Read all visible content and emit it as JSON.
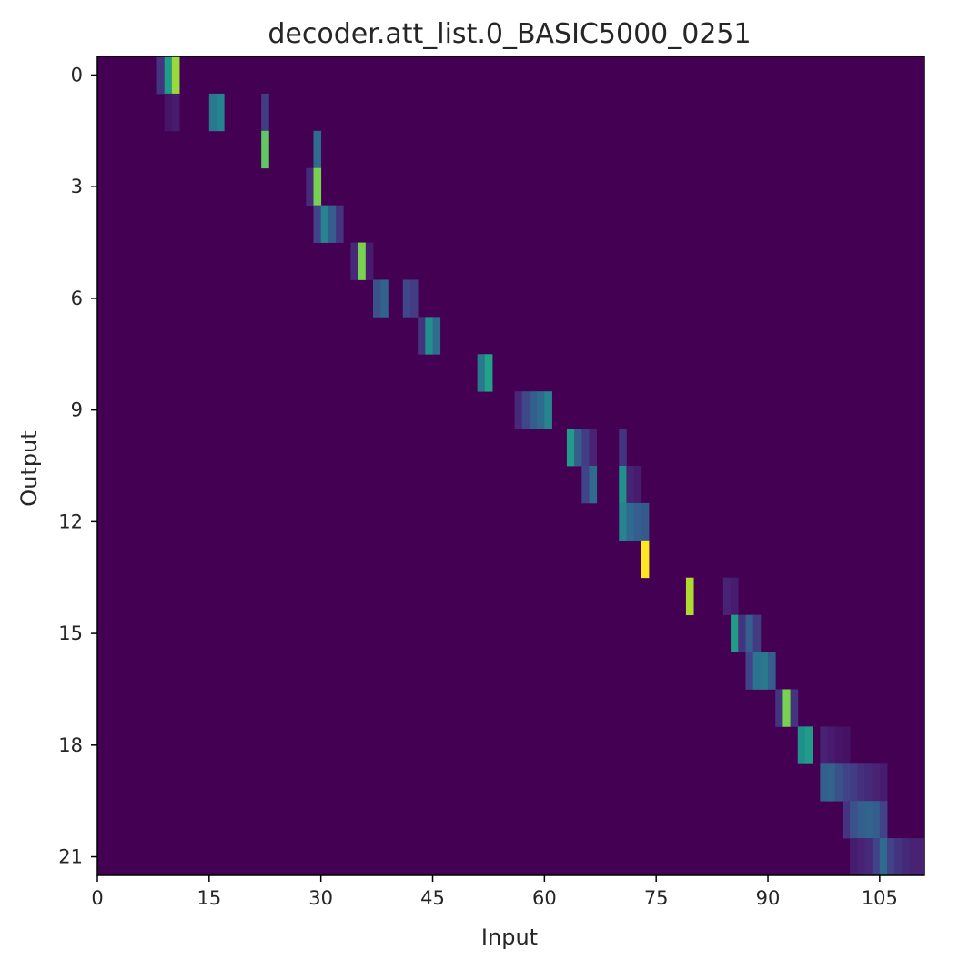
{
  "chart_data": {
    "type": "heatmap",
    "title": "decoder.att_list.0_BASIC5000_0251",
    "xlabel": "Input",
    "ylabel": "Output",
    "x_range": [
      0,
      111
    ],
    "y_range": [
      0,
      21
    ],
    "x_ticks": [
      0,
      15,
      30,
      45,
      60,
      75,
      90,
      105
    ],
    "y_ticks": [
      0,
      3,
      6,
      9,
      12,
      15,
      18,
      21
    ],
    "colormap": "viridis",
    "value_range": [
      0,
      1
    ],
    "grid": false,
    "cells": [
      {
        "row": 0,
        "col": 8,
        "value": 0.15
      },
      {
        "row": 0,
        "col": 9,
        "value": 0.55
      },
      {
        "row": 0,
        "col": 10,
        "value": 0.85
      },
      {
        "row": 1,
        "col": 9,
        "value": 0.06
      },
      {
        "row": 1,
        "col": 10,
        "value": 0.08
      },
      {
        "row": 1,
        "col": 15,
        "value": 0.4
      },
      {
        "row": 1,
        "col": 16,
        "value": 0.45
      },
      {
        "row": 1,
        "col": 22,
        "value": 0.18
      },
      {
        "row": 2,
        "col": 22,
        "value": 0.75
      },
      {
        "row": 2,
        "col": 29,
        "value": 0.35
      },
      {
        "row": 3,
        "col": 28,
        "value": 0.12
      },
      {
        "row": 3,
        "col": 29,
        "value": 0.8
      },
      {
        "row": 4,
        "col": 29,
        "value": 0.2
      },
      {
        "row": 4,
        "col": 30,
        "value": 0.45
      },
      {
        "row": 4,
        "col": 31,
        "value": 0.3
      },
      {
        "row": 4,
        "col": 32,
        "value": 0.15
      },
      {
        "row": 5,
        "col": 34,
        "value": 0.12
      },
      {
        "row": 5,
        "col": 35,
        "value": 0.8
      },
      {
        "row": 5,
        "col": 36,
        "value": 0.08
      },
      {
        "row": 6,
        "col": 37,
        "value": 0.25
      },
      {
        "row": 6,
        "col": 38,
        "value": 0.32
      },
      {
        "row": 6,
        "col": 41,
        "value": 0.22
      },
      {
        "row": 6,
        "col": 42,
        "value": 0.18
      },
      {
        "row": 7,
        "col": 43,
        "value": 0.15
      },
      {
        "row": 7,
        "col": 44,
        "value": 0.5
      },
      {
        "row": 7,
        "col": 45,
        "value": 0.35
      },
      {
        "row": 8,
        "col": 51,
        "value": 0.4
      },
      {
        "row": 8,
        "col": 52,
        "value": 0.58
      },
      {
        "row": 9,
        "col": 56,
        "value": 0.12
      },
      {
        "row": 9,
        "col": 57,
        "value": 0.22
      },
      {
        "row": 9,
        "col": 58,
        "value": 0.3
      },
      {
        "row": 9,
        "col": 59,
        "value": 0.35
      },
      {
        "row": 9,
        "col": 60,
        "value": 0.45
      },
      {
        "row": 10,
        "col": 63,
        "value": 0.55
      },
      {
        "row": 10,
        "col": 64,
        "value": 0.3
      },
      {
        "row": 10,
        "col": 65,
        "value": 0.18
      },
      {
        "row": 10,
        "col": 66,
        "value": 0.1
      },
      {
        "row": 10,
        "col": 70,
        "value": 0.15
      },
      {
        "row": 11,
        "col": 65,
        "value": 0.2
      },
      {
        "row": 11,
        "col": 66,
        "value": 0.35
      },
      {
        "row": 11,
        "col": 70,
        "value": 0.5
      },
      {
        "row": 11,
        "col": 71,
        "value": 0.1
      },
      {
        "row": 11,
        "col": 72,
        "value": 0.08
      },
      {
        "row": 12,
        "col": 70,
        "value": 0.45
      },
      {
        "row": 12,
        "col": 71,
        "value": 0.35
      },
      {
        "row": 12,
        "col": 72,
        "value": 0.3
      },
      {
        "row": 12,
        "col": 73,
        "value": 0.28
      },
      {
        "row": 13,
        "col": 73,
        "value": 1.0
      },
      {
        "row": 14,
        "col": 79,
        "value": 0.88
      },
      {
        "row": 14,
        "col": 84,
        "value": 0.1
      },
      {
        "row": 14,
        "col": 85,
        "value": 0.08
      },
      {
        "row": 15,
        "col": 85,
        "value": 0.55
      },
      {
        "row": 15,
        "col": 86,
        "value": 0.15
      },
      {
        "row": 15,
        "col": 87,
        "value": 0.3
      },
      {
        "row": 15,
        "col": 88,
        "value": 0.18
      },
      {
        "row": 16,
        "col": 87,
        "value": 0.2
      },
      {
        "row": 16,
        "col": 88,
        "value": 0.38
      },
      {
        "row": 16,
        "col": 89,
        "value": 0.4
      },
      {
        "row": 16,
        "col": 90,
        "value": 0.3
      },
      {
        "row": 17,
        "col": 91,
        "value": 0.15
      },
      {
        "row": 17,
        "col": 92,
        "value": 0.8
      },
      {
        "row": 17,
        "col": 93,
        "value": 0.15
      },
      {
        "row": 18,
        "col": 94,
        "value": 0.5
      },
      {
        "row": 18,
        "col": 95,
        "value": 0.55
      },
      {
        "row": 18,
        "col": 97,
        "value": 0.1
      },
      {
        "row": 18,
        "col": 98,
        "value": 0.08
      },
      {
        "row": 18,
        "col": 99,
        "value": 0.06
      },
      {
        "row": 18,
        "col": 100,
        "value": 0.05
      },
      {
        "row": 19,
        "col": 97,
        "value": 0.3
      },
      {
        "row": 19,
        "col": 98,
        "value": 0.32
      },
      {
        "row": 19,
        "col": 99,
        "value": 0.25
      },
      {
        "row": 19,
        "col": 100,
        "value": 0.2
      },
      {
        "row": 19,
        "col": 101,
        "value": 0.18
      },
      {
        "row": 19,
        "col": 102,
        "value": 0.14
      },
      {
        "row": 19,
        "col": 103,
        "value": 0.12
      },
      {
        "row": 19,
        "col": 104,
        "value": 0.1
      },
      {
        "row": 19,
        "col": 105,
        "value": 0.08
      },
      {
        "row": 20,
        "col": 100,
        "value": 0.15
      },
      {
        "row": 20,
        "col": 101,
        "value": 0.25
      },
      {
        "row": 20,
        "col": 102,
        "value": 0.3
      },
      {
        "row": 20,
        "col": 103,
        "value": 0.32
      },
      {
        "row": 20,
        "col": 104,
        "value": 0.3
      },
      {
        "row": 20,
        "col": 105,
        "value": 0.2
      },
      {
        "row": 21,
        "col": 101,
        "value": 0.08
      },
      {
        "row": 21,
        "col": 102,
        "value": 0.1
      },
      {
        "row": 21,
        "col": 103,
        "value": 0.12
      },
      {
        "row": 21,
        "col": 104,
        "value": 0.2
      },
      {
        "row": 21,
        "col": 105,
        "value": 0.35
      },
      {
        "row": 21,
        "col": 106,
        "value": 0.2
      },
      {
        "row": 21,
        "col": 107,
        "value": 0.15
      },
      {
        "row": 21,
        "col": 108,
        "value": 0.12
      },
      {
        "row": 21,
        "col": 109,
        "value": 0.1
      },
      {
        "row": 21,
        "col": 110,
        "value": 0.1
      }
    ]
  }
}
